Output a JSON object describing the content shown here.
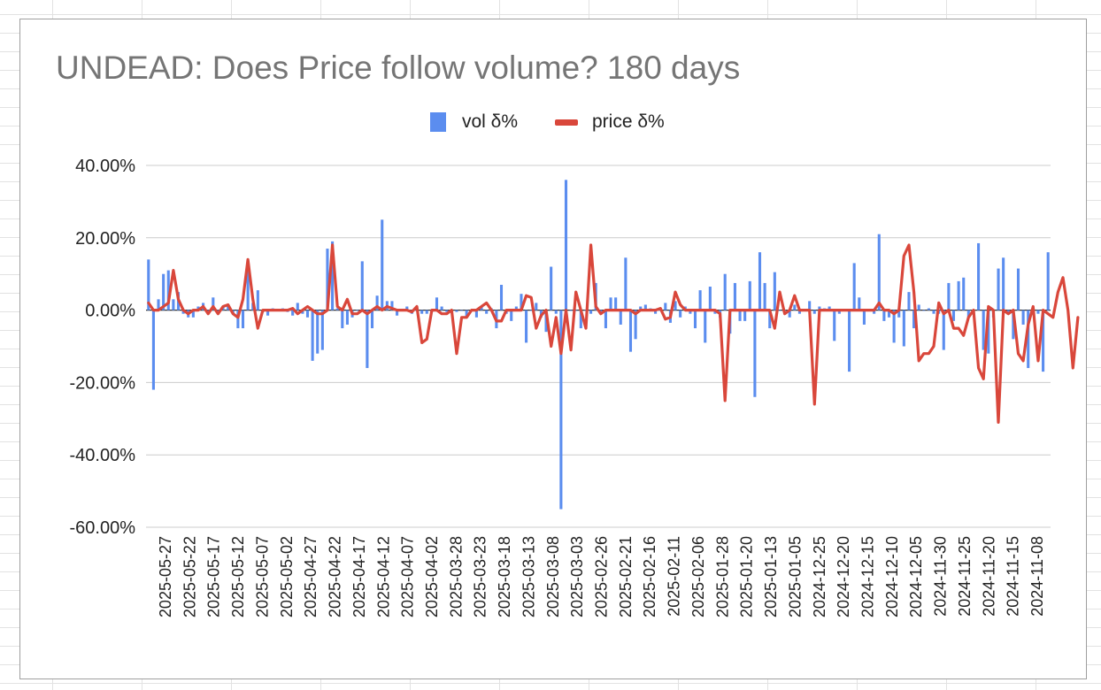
{
  "chart_data": {
    "type": "bar+line",
    "title": "UNDEAD: Does Price follow volume? 180 days",
    "legend_position": "top",
    "ylim": [
      -0.6,
      0.4
    ],
    "y_tick_values": [
      0.4,
      0.2,
      0,
      -0.2,
      -0.4,
      -0.6
    ],
    "y_tick_labels": [
      "40.00%",
      "20.00%",
      "0.00%",
      "-20.00%",
      "-40.00%",
      "-60.00%"
    ],
    "x_tick_labels": [
      "2025-05-27",
      "2025-05-22",
      "2025-05-17",
      "2025-05-12",
      "2025-05-07",
      "2025-05-02",
      "2025-04-27",
      "2025-04-22",
      "2025-04-17",
      "2025-04-12",
      "2025-04-07",
      "2025-04-02",
      "2025-03-28",
      "2025-03-23",
      "2025-03-18",
      "2025-03-13",
      "2025-03-08",
      "2025-03-03",
      "2025-02-26",
      "2025-02-21",
      "2025-02-16",
      "2025-02-11",
      "2025-02-06",
      "2025-01-28",
      "2025-01-20",
      "2025-01-13",
      "2025-01-05",
      "2024-12-25",
      "2024-12-20",
      "2024-12-15",
      "2024-12-10",
      "2024-12-05",
      "2024-11-30",
      "2024-11-25",
      "2024-11-20",
      "2024-11-15",
      "2024-11-08"
    ],
    "grid": true,
    "series": [
      {
        "name": "vol δ%",
        "chart_type": "bar",
        "color": "#5b8def",
        "values": [
          0.14,
          -0.22,
          0.03,
          0.1,
          0.11,
          0.03,
          0.05,
          -0.01,
          -0.02,
          -0.02,
          0.01,
          0.02,
          -0.01,
          0.035,
          -0.01,
          0.01,
          0.015,
          -0.01,
          -0.05,
          -0.05,
          0.12,
          0.02,
          0.055,
          -0.005,
          -0.015,
          0.005,
          0.0,
          0.005,
          -0.005,
          -0.015,
          0.02,
          -0.01,
          -0.02,
          -0.14,
          -0.12,
          -0.11,
          0.17,
          0.19,
          0.005,
          -0.05,
          -0.04,
          -0.02,
          0.0,
          0.135,
          -0.16,
          -0.05,
          0.04,
          0.25,
          0.025,
          0.025,
          -0.015,
          0.0,
          0.01,
          -0.01,
          0.0,
          -0.01,
          -0.01,
          -0.005,
          0.035,
          0.01,
          -0.005,
          -0.005,
          -0.005,
          0.0,
          -0.02,
          0.0,
          -0.02,
          0.01,
          -0.01,
          0.005,
          -0.05,
          0.07,
          -0.01,
          -0.03,
          0.01,
          0.045,
          -0.09,
          0.0,
          0.02,
          -0.02,
          -0.06,
          0.12,
          -0.01,
          -0.55,
          0.36,
          0.0,
          0.0,
          -0.05,
          0.0,
          -0.01,
          0.075,
          -0.01,
          -0.05,
          0.035,
          0.035,
          -0.04,
          0.145,
          -0.115,
          -0.08,
          0.01,
          0.015,
          0.005,
          -0.01,
          0.0,
          0.02,
          -0.035,
          0.025,
          -0.02,
          0.01,
          -0.01,
          -0.05,
          0.055,
          -0.09,
          0.065,
          -0.01,
          -0.02,
          0.1,
          -0.065,
          0.075,
          -0.03,
          -0.03,
          0.08,
          -0.24,
          0.16,
          0.075,
          -0.05,
          0.105,
          0.0,
          0.0,
          -0.02,
          0.015,
          -0.01,
          0.0,
          0.025,
          -0.01,
          0.01,
          0.005,
          0.01,
          -0.085,
          -0.01,
          0.0,
          -0.17,
          0.13,
          0.035,
          -0.04,
          0.0,
          -0.01,
          0.21,
          -0.03,
          -0.02,
          -0.09,
          -0.02,
          -0.1,
          0.05,
          -0.05,
          0.015,
          0.0,
          0.005,
          -0.01,
          -0.01,
          -0.11,
          0.075,
          -0.03,
          0.08,
          0.09,
          -0.02,
          0.0,
          0.185,
          -0.11,
          -0.12,
          -0.02,
          0.115,
          0.145,
          -0.01,
          -0.08,
          0.115,
          -0.04,
          -0.16,
          -0.01,
          -0.01,
          -0.17,
          0.16
        ]
      },
      {
        "name": "price δ%",
        "chart_type": "line",
        "color": "#d9473b",
        "values": [
          0.02,
          0.0,
          0.0,
          0.01,
          0.02,
          0.11,
          0.03,
          0.0,
          -0.01,
          0.0,
          0.0,
          0.01,
          -0.01,
          0.01,
          -0.01,
          0.01,
          0.015,
          -0.01,
          -0.02,
          0.03,
          0.14,
          0.03,
          -0.05,
          0.0,
          0.0,
          0.0,
          0.0,
          0.0,
          0.0,
          0.005,
          -0.01,
          0.0,
          0.01,
          0.0,
          -0.01,
          -0.01,
          0.0,
          0.18,
          0.01,
          0.0,
          0.03,
          -0.01,
          -0.01,
          0.0,
          -0.01,
          0.0,
          0.01,
          0.0,
          0.01,
          0.005,
          0.0,
          0.0,
          0.0,
          -0.005,
          0.01,
          -0.09,
          -0.08,
          0.0,
          0.0,
          -0.01,
          -0.01,
          0.0,
          -0.12,
          -0.02,
          -0.02,
          0.0,
          0.0,
          0.01,
          0.02,
          0.0,
          -0.03,
          -0.03,
          0.0,
          0.0,
          0.0,
          0.0,
          0.04,
          0.035,
          -0.05,
          -0.015,
          0.0,
          -0.1,
          -0.02,
          -0.12,
          0.0,
          -0.11,
          0.05,
          0.0,
          -0.05,
          0.18,
          0.01,
          -0.01,
          0.0,
          0.0,
          0.0,
          0.0,
          0.0,
          0.0,
          -0.01,
          0.0,
          0.0,
          0.0,
          0.0,
          0.005,
          -0.025,
          -0.02,
          0.05,
          0.015,
          0.0,
          0.0,
          0.0,
          0.0,
          0.0,
          0.0,
          0.0,
          -0.01,
          -0.25,
          0.0,
          0.0,
          0.0,
          0.0,
          0.0,
          0.0,
          0.0,
          0.0,
          0.0,
          -0.05,
          0.05,
          -0.01,
          0.0,
          0.04,
          0.0,
          0.0,
          0.0,
          -0.26,
          0.0,
          0.0,
          0.0,
          0.0,
          0.0,
          0.0,
          0.0,
          0.0,
          0.0,
          0.0,
          0.0,
          0.0,
          0.02,
          0.0,
          0.0,
          -0.01,
          0.0,
          0.15,
          0.18,
          0.05,
          -0.14,
          -0.12,
          -0.12,
          -0.1,
          0.02,
          -0.01,
          0.0,
          -0.05,
          -0.05,
          -0.07,
          -0.02,
          0.0,
          -0.16,
          -0.19,
          0.01,
          0.0,
          -0.31,
          0.0,
          -0.01,
          0.0,
          -0.12,
          -0.14,
          -0.04,
          0.01,
          -0.14,
          0.0,
          -0.01,
          -0.02,
          0.05,
          0.09,
          0.0,
          -0.16,
          -0.02
        ]
      }
    ]
  }
}
